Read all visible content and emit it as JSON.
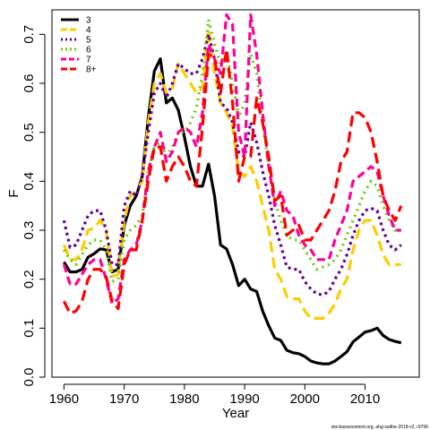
{
  "chart_data": {
    "type": "line",
    "xlabel": "Year",
    "ylabel": "F",
    "xlim": [
      1958,
      2019
    ],
    "ylim": [
      0,
      0.75
    ],
    "x_ticks": [
      "1960",
      "1970",
      "1980",
      "1990",
      "2000",
      "2010"
    ],
    "y_ticks": [
      "0.0",
      "0.1",
      "0.2",
      "0.3",
      "0.4",
      "0.5",
      "0.6",
      "0.7"
    ],
    "legend_position": "top-left",
    "credit": "stockassessment.org, ahg-saithe-2018-v2, r9796",
    "series": [
      {
        "name": "3",
        "color": "#000000",
        "dash": "solid",
        "x": [
          1960,
          1961,
          1962,
          1963,
          1964,
          1965,
          1966,
          1967,
          1968,
          1969,
          1970,
          1971,
          1972,
          1973,
          1974,
          1975,
          1976,
          1977,
          1978,
          1979,
          1980,
          1981,
          1982,
          1983,
          1984,
          1985,
          1986,
          1987,
          1988,
          1989,
          1990,
          1991,
          1992,
          1993,
          1994,
          1995,
          1996,
          1997,
          1998,
          1999,
          2000,
          2001,
          2002,
          2003,
          2004,
          2005,
          2006,
          2007,
          2008,
          2009,
          2010,
          2011,
          2012,
          2013,
          2014,
          2015,
          2016
        ],
        "y": [
          0.235,
          0.215,
          0.215,
          0.22,
          0.245,
          0.252,
          0.262,
          0.26,
          0.215,
          0.22,
          0.31,
          0.35,
          0.37,
          0.41,
          0.53,
          0.625,
          0.65,
          0.56,
          0.57,
          0.545,
          0.49,
          0.43,
          0.39,
          0.39,
          0.435,
          0.37,
          0.27,
          0.262,
          0.23,
          0.187,
          0.2,
          0.18,
          0.175,
          0.135,
          0.105,
          0.08,
          0.075,
          0.055,
          0.05,
          0.048,
          0.042,
          0.033,
          0.029,
          0.027,
          0.027,
          0.033,
          0.042,
          0.052,
          0.072,
          0.082,
          0.092,
          0.095,
          0.1,
          0.085,
          0.077,
          0.073,
          0.07
        ]
      },
      {
        "name": "4",
        "color": "#ffcc00",
        "dash": "long",
        "x": [
          1960,
          1961,
          1962,
          1963,
          1964,
          1965,
          1966,
          1967,
          1968,
          1969,
          1970,
          1971,
          1972,
          1973,
          1974,
          1975,
          1976,
          1977,
          1978,
          1979,
          1980,
          1981,
          1982,
          1983,
          1984,
          1985,
          1986,
          1987,
          1988,
          1989,
          1990,
          1991,
          1992,
          1993,
          1994,
          1995,
          1996,
          1997,
          1998,
          1999,
          2000,
          2001,
          2002,
          2003,
          2004,
          2005,
          2006,
          2007,
          2008,
          2009,
          2010,
          2011,
          2012,
          2013,
          2014,
          2015,
          2016
        ],
        "y": [
          0.27,
          0.24,
          0.24,
          0.26,
          0.3,
          0.305,
          0.32,
          0.3,
          0.205,
          0.21,
          0.32,
          0.37,
          0.38,
          0.4,
          0.52,
          0.6,
          0.62,
          0.58,
          0.59,
          0.64,
          0.62,
          0.6,
          0.58,
          0.59,
          0.71,
          0.62,
          0.56,
          0.54,
          0.51,
          0.42,
          0.41,
          0.43,
          0.4,
          0.35,
          0.3,
          0.22,
          0.2,
          0.165,
          0.16,
          0.16,
          0.135,
          0.12,
          0.12,
          0.12,
          0.13,
          0.15,
          0.18,
          0.2,
          0.26,
          0.3,
          0.32,
          0.32,
          0.29,
          0.25,
          0.23,
          0.23,
          0.23
        ]
      },
      {
        "name": "5",
        "color": "#660099",
        "dash": "short",
        "x": [
          1960,
          1961,
          1962,
          1963,
          1964,
          1965,
          1966,
          1967,
          1968,
          1969,
          1970,
          1971,
          1972,
          1973,
          1974,
          1975,
          1976,
          1977,
          1978,
          1979,
          1980,
          1981,
          1982,
          1983,
          1984,
          1985,
          1986,
          1987,
          1988,
          1989,
          1990,
          1991,
          1992,
          1993,
          1994,
          1995,
          1996,
          1997,
          1998,
          1999,
          2000,
          2001,
          2002,
          2003,
          2004,
          2005,
          2006,
          2007,
          2008,
          2009,
          2010,
          2011,
          2012,
          2013,
          2014,
          2015,
          2016
        ],
        "y": [
          0.32,
          0.265,
          0.27,
          0.3,
          0.33,
          0.34,
          0.34,
          0.3,
          0.23,
          0.23,
          0.35,
          0.38,
          0.37,
          0.41,
          0.5,
          0.58,
          0.6,
          0.57,
          0.6,
          0.64,
          0.63,
          0.62,
          0.62,
          0.65,
          0.7,
          0.65,
          0.56,
          0.55,
          0.52,
          0.46,
          0.45,
          0.52,
          0.48,
          0.42,
          0.37,
          0.31,
          0.27,
          0.225,
          0.22,
          0.22,
          0.195,
          0.18,
          0.17,
          0.168,
          0.175,
          0.2,
          0.22,
          0.25,
          0.29,
          0.32,
          0.34,
          0.345,
          0.34,
          0.3,
          0.27,
          0.26,
          0.27
        ]
      },
      {
        "name": "6",
        "color": "#66cc00",
        "dash": "dot",
        "x": [
          1960,
          1961,
          1962,
          1963,
          1964,
          1965,
          1966,
          1967,
          1968,
          1969,
          1970,
          1971,
          1972,
          1973,
          1974,
          1975,
          1976,
          1977,
          1978,
          1979,
          1980,
          1981,
          1982,
          1983,
          1984,
          1985,
          1986,
          1987,
          1988,
          1989,
          1990,
          1991,
          1992,
          1993,
          1994,
          1995,
          1996,
          1997,
          1998,
          1999,
          2000,
          2001,
          2002,
          2003,
          2004,
          2005,
          2006,
          2007,
          2008,
          2009,
          2010,
          2011,
          2012,
          2013,
          2014,
          2015,
          2016
        ],
        "y": [
          0.26,
          0.24,
          0.23,
          0.25,
          0.27,
          0.28,
          0.28,
          0.26,
          0.195,
          0.2,
          0.28,
          0.3,
          0.31,
          0.33,
          0.42,
          0.47,
          0.48,
          0.45,
          0.47,
          0.5,
          0.5,
          0.52,
          0.55,
          0.62,
          0.73,
          0.68,
          0.64,
          0.66,
          0.6,
          0.53,
          0.56,
          0.66,
          0.62,
          0.52,
          0.43,
          0.36,
          0.32,
          0.29,
          0.28,
          0.28,
          0.26,
          0.24,
          0.22,
          0.225,
          0.23,
          0.24,
          0.26,
          0.29,
          0.32,
          0.35,
          0.38,
          0.4,
          0.39,
          0.35,
          0.32,
          0.3,
          0.3
        ]
      },
      {
        "name": "7",
        "color": "#ff0099",
        "dash": "medium",
        "x": [
          1960,
          1961,
          1962,
          1963,
          1964,
          1965,
          1966,
          1967,
          1968,
          1969,
          1970,
          1971,
          1972,
          1973,
          1974,
          1975,
          1976,
          1977,
          1978,
          1979,
          1980,
          1981,
          1982,
          1983,
          1984,
          1985,
          1986,
          1987,
          1988,
          1989,
          1990,
          1991,
          1992,
          1993,
          1994,
          1995,
          1996,
          1997,
          1998,
          1999,
          2000,
          2001,
          2002,
          2003,
          2004,
          2005,
          2006,
          2007,
          2008,
          2009,
          2010,
          2011,
          2012,
          2013,
          2014,
          2015,
          2016
        ],
        "y": [
          0.23,
          0.19,
          0.19,
          0.21,
          0.23,
          0.24,
          0.24,
          0.2,
          0.15,
          0.16,
          0.24,
          0.26,
          0.27,
          0.32,
          0.42,
          0.47,
          0.5,
          0.44,
          0.46,
          0.5,
          0.51,
          0.5,
          0.47,
          0.54,
          0.68,
          0.65,
          0.62,
          0.74,
          0.72,
          0.5,
          0.45,
          0.74,
          0.66,
          0.54,
          0.43,
          0.35,
          0.38,
          0.34,
          0.33,
          0.29,
          0.27,
          0.26,
          0.24,
          0.24,
          0.24,
          0.28,
          0.31,
          0.34,
          0.4,
          0.41,
          0.42,
          0.43,
          0.42,
          0.37,
          0.33,
          0.3,
          0.3
        ]
      },
      {
        "name": "8+",
        "color": "#ff0000",
        "dash": "long",
        "x": [
          1960,
          1961,
          1962,
          1963,
          1964,
          1965,
          1966,
          1967,
          1968,
          1969,
          1970,
          1971,
          1972,
          1973,
          1974,
          1975,
          1976,
          1977,
          1978,
          1979,
          1980,
          1981,
          1982,
          1983,
          1984,
          1985,
          1986,
          1987,
          1988,
          1989,
          1990,
          1991,
          1992,
          1993,
          1994,
          1995,
          1996,
          1997,
          1998,
          1999,
          2000,
          2001,
          2002,
          2003,
          2004,
          2005,
          2006,
          2007,
          2008,
          2009,
          2010,
          2011,
          2012,
          2013,
          2014,
          2015,
          2016
        ],
        "y": [
          0.155,
          0.13,
          0.135,
          0.155,
          0.2,
          0.22,
          0.22,
          0.205,
          0.155,
          0.14,
          0.23,
          0.26,
          0.26,
          0.32,
          0.4,
          0.47,
          0.47,
          0.4,
          0.43,
          0.45,
          0.43,
          0.4,
          0.39,
          0.51,
          0.66,
          0.65,
          0.58,
          0.67,
          0.56,
          0.4,
          0.45,
          0.45,
          0.57,
          0.52,
          0.45,
          0.36,
          0.37,
          0.29,
          0.3,
          0.31,
          0.28,
          0.28,
          0.3,
          0.32,
          0.34,
          0.38,
          0.44,
          0.46,
          0.54,
          0.54,
          0.53,
          0.5,
          0.44,
          0.37,
          0.34,
          0.32,
          0.35
        ]
      }
    ]
  }
}
